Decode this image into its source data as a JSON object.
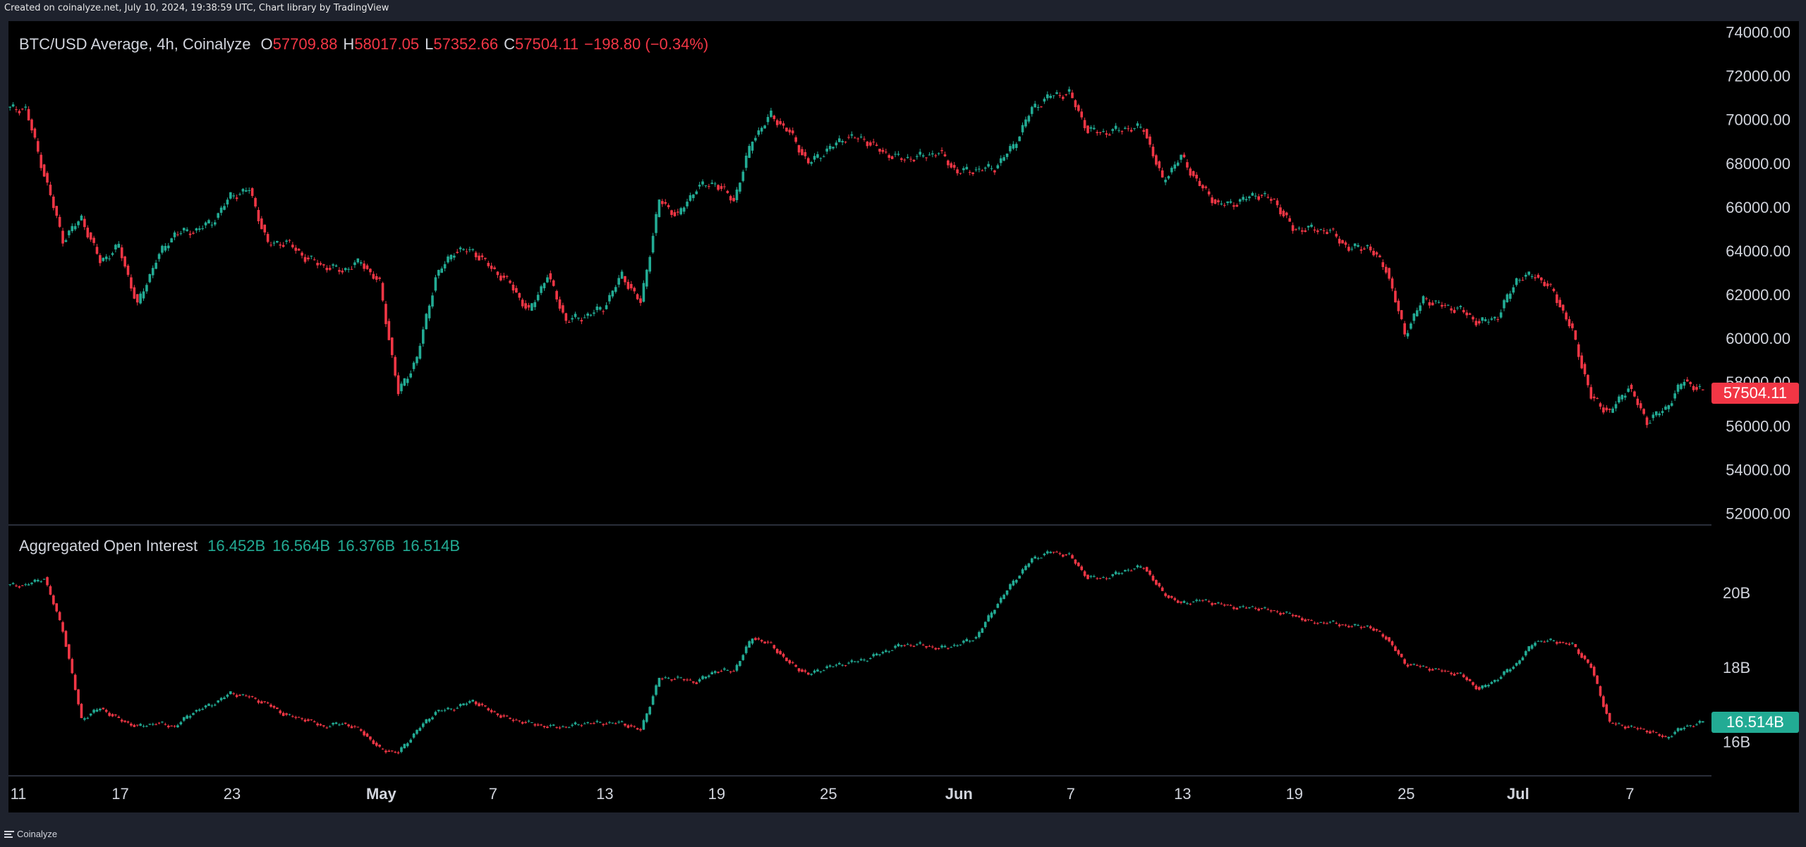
{
  "header": {
    "credit": "Created on coinalyze.net, July 10, 2024, 19:38:59 UTC, Chart library by TradingView"
  },
  "footer": {
    "brand": "Coinalyze"
  },
  "colors": {
    "up": "#22ab94",
    "down": "#f23645",
    "axis_text": "#d1d4dc",
    "background": "#000000",
    "frame": "#1e222d"
  },
  "price_pane": {
    "legend": {
      "symbol": "BTC/USD Average, 4h, Coinalyze",
      "open_label": "O",
      "open": "57709.88",
      "high_label": "H",
      "high": "58017.05",
      "low_label": "L",
      "low": "57352.66",
      "close_label": "C",
      "close": "57504.11",
      "change": "−198.80 (−0.34%)"
    },
    "last_price_label": "57504.11",
    "y_ticks": [
      "74000.00",
      "72000.00",
      "70000.00",
      "68000.00",
      "66000.00",
      "64000.00",
      "62000.00",
      "60000.00",
      "58000.00",
      "56000.00",
      "54000.00",
      "52000.00"
    ]
  },
  "oi_pane": {
    "legend": {
      "title": "Aggregated Open Interest",
      "open": "16.452B",
      "high": "16.564B",
      "low": "16.376B",
      "close": "16.514B"
    },
    "last_value_label": "16.514B",
    "y_ticks": [
      "20B",
      "18B",
      "16B"
    ]
  },
  "x_ticks": [
    "11",
    "17",
    "23",
    "May",
    "7",
    "13",
    "19",
    "25",
    "Jun",
    "7",
    "13",
    "19",
    "25",
    "Jul",
    "7"
  ],
  "chart_data": [
    {
      "type": "candlestick",
      "interval": "4h",
      "ylim": [
        51500,
        74500
      ],
      "x": [
        "2024-04-11",
        "2024-04-12",
        "2024-04-13",
        "2024-04-14",
        "2024-04-15",
        "2024-04-16",
        "2024-04-17",
        "2024-04-18",
        "2024-04-19",
        "2024-04-20",
        "2024-04-21",
        "2024-04-22",
        "2024-04-23",
        "2024-04-24",
        "2024-04-25",
        "2024-04-26",
        "2024-04-27",
        "2024-04-28",
        "2024-04-29",
        "2024-04-30",
        "2024-05-01",
        "2024-05-02",
        "2024-05-03",
        "2024-05-04",
        "2024-05-05",
        "2024-05-06",
        "2024-05-07",
        "2024-05-08",
        "2024-05-09",
        "2024-05-10",
        "2024-05-11",
        "2024-05-12",
        "2024-05-13",
        "2024-05-14",
        "2024-05-15",
        "2024-05-16",
        "2024-05-17",
        "2024-05-18",
        "2024-05-19",
        "2024-05-20",
        "2024-05-21",
        "2024-05-22",
        "2024-05-23",
        "2024-05-24",
        "2024-05-25",
        "2024-05-26",
        "2024-05-27",
        "2024-05-28",
        "2024-05-29",
        "2024-05-30",
        "2024-05-31",
        "2024-06-01",
        "2024-06-02",
        "2024-06-03",
        "2024-06-04",
        "2024-06-05",
        "2024-06-06",
        "2024-06-07",
        "2024-06-08",
        "2024-06-09",
        "2024-06-10",
        "2024-06-11",
        "2024-06-12",
        "2024-06-13",
        "2024-06-14",
        "2024-06-15",
        "2024-06-16",
        "2024-06-17",
        "2024-06-18",
        "2024-06-19",
        "2024-06-20",
        "2024-06-21",
        "2024-06-22",
        "2024-06-23",
        "2024-06-24",
        "2024-06-25",
        "2024-06-26",
        "2024-06-27",
        "2024-06-28",
        "2024-06-29",
        "2024-06-30",
        "2024-07-01",
        "2024-07-02",
        "2024-07-03",
        "2024-07-04",
        "2024-07-05",
        "2024-07-06",
        "2024-07-07",
        "2024-07-08",
        "2024-07-09",
        "2024-07-10"
      ],
      "close": [
        70500,
        67500,
        64500,
        65500,
        63500,
        64200,
        61500,
        63600,
        64800,
        64900,
        65300,
        66500,
        66800,
        64300,
        64400,
        63700,
        63300,
        63100,
        63500,
        62500,
        57500,
        59100,
        62800,
        64000,
        64000,
        63200,
        62500,
        61200,
        62900,
        60800,
        61000,
        61400,
        62900,
        61600,
        66300,
        65600,
        66900,
        67100,
        66300,
        69100,
        70200,
        69400,
        68000,
        68600,
        69200,
        69100,
        68500,
        68200,
        68300,
        68500,
        67600,
        67700,
        67800,
        68800,
        70500,
        71100,
        71200,
        69500,
        69400,
        69600,
        69600,
        67200,
        68300,
        67000,
        66100,
        66200,
        66600,
        66300,
        65000,
        65000,
        64900,
        64100,
        64200,
        63200,
        60200,
        61800,
        61500,
        61300,
        60700,
        61000,
        62700,
        62900,
        62100,
        60300,
        57300,
        56600,
        57800,
        56200,
        56800,
        58100,
        57504
      ]
    },
    {
      "type": "candlestick",
      "title": "Aggregated Open Interest",
      "interval": "4h",
      "unit": "B",
      "ylim": [
        15.1,
        21.8
      ],
      "x": [
        "2024-04-11",
        "2024-04-12",
        "2024-04-13",
        "2024-04-14",
        "2024-04-15",
        "2024-04-16",
        "2024-04-17",
        "2024-04-18",
        "2024-04-19",
        "2024-04-20",
        "2024-04-21",
        "2024-04-22",
        "2024-04-23",
        "2024-04-24",
        "2024-04-25",
        "2024-04-26",
        "2024-04-27",
        "2024-04-28",
        "2024-04-29",
        "2024-04-30",
        "2024-05-01",
        "2024-05-02",
        "2024-05-03",
        "2024-05-04",
        "2024-05-05",
        "2024-05-06",
        "2024-05-07",
        "2024-05-08",
        "2024-05-09",
        "2024-05-10",
        "2024-05-11",
        "2024-05-12",
        "2024-05-13",
        "2024-05-14",
        "2024-05-15",
        "2024-05-16",
        "2024-05-17",
        "2024-05-18",
        "2024-05-19",
        "2024-05-20",
        "2024-05-21",
        "2024-05-22",
        "2024-05-23",
        "2024-05-24",
        "2024-05-25",
        "2024-05-26",
        "2024-05-27",
        "2024-05-28",
        "2024-05-29",
        "2024-05-30",
        "2024-05-31",
        "2024-06-01",
        "2024-06-02",
        "2024-06-03",
        "2024-06-04",
        "2024-06-05",
        "2024-06-06",
        "2024-06-07",
        "2024-06-08",
        "2024-06-09",
        "2024-06-10",
        "2024-06-11",
        "2024-06-12",
        "2024-06-13",
        "2024-06-14",
        "2024-06-15",
        "2024-06-16",
        "2024-06-17",
        "2024-06-18",
        "2024-06-19",
        "2024-06-20",
        "2024-06-21",
        "2024-06-22",
        "2024-06-23",
        "2024-06-24",
        "2024-06-25",
        "2024-06-26",
        "2024-06-27",
        "2024-06-28",
        "2024-06-29",
        "2024-06-30",
        "2024-07-01",
        "2024-07-02",
        "2024-07-03",
        "2024-07-04",
        "2024-07-05",
        "2024-07-06",
        "2024-07-07",
        "2024-07-08",
        "2024-07-09",
        "2024-07-10"
      ],
      "close": [
        20.2,
        20.4,
        19.0,
        16.6,
        16.9,
        16.6,
        16.4,
        16.5,
        16.4,
        16.8,
        17.0,
        17.3,
        17.2,
        17.0,
        16.7,
        16.6,
        16.4,
        16.5,
        16.3,
        15.8,
        15.7,
        16.3,
        16.8,
        16.9,
        17.1,
        16.8,
        16.6,
        16.5,
        16.4,
        16.4,
        16.5,
        16.5,
        16.5,
        16.3,
        17.7,
        17.7,
        17.6,
        17.9,
        17.9,
        18.8,
        18.6,
        18.1,
        17.8,
        18.0,
        18.1,
        18.2,
        18.4,
        18.6,
        18.6,
        18.5,
        18.6,
        18.8,
        19.6,
        20.3,
        20.9,
        21.1,
        21.0,
        20.4,
        20.4,
        20.6,
        20.7,
        20.0,
        19.7,
        19.8,
        19.7,
        19.6,
        19.6,
        19.5,
        19.4,
        19.2,
        19.2,
        19.1,
        19.1,
        18.8,
        18.1,
        18.0,
        17.9,
        17.8,
        17.4,
        17.7,
        18.1,
        18.7,
        18.7,
        18.6,
        18.0,
        16.5,
        16.4,
        16.3,
        16.1,
        16.4,
        16.514
      ]
    }
  ]
}
